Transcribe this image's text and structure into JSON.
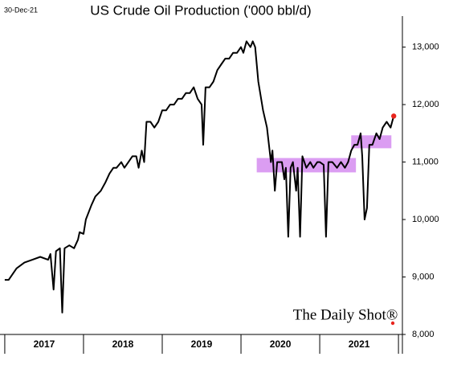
{
  "chart_data": {
    "type": "line",
    "title": "US Crude Oil Production ('000 bbl/d)",
    "date_label": "30-Dec-21",
    "watermark": "The Daily Shot®",
    "categories": [
      "2017",
      "2018",
      "2019",
      "2020",
      "2021"
    ],
    "xticks": [
      2017,
      2018,
      2019,
      2020,
      2021,
      2022
    ],
    "xlim": [
      2016.97,
      2022.05
    ],
    "ylim": [
      8000,
      13400
    ],
    "yticks": [
      {
        "value": 8000,
        "label": "8,000"
      },
      {
        "value": 9000,
        "label": "9,000"
      },
      {
        "value": 10000,
        "label": "10,000"
      },
      {
        "value": 11000,
        "label": "11,000"
      },
      {
        "value": 12000,
        "label": "12,000"
      },
      {
        "value": 13000,
        "label": "13,000"
      }
    ],
    "highlight_color": "#d58cf0",
    "highlights": [
      {
        "x": [
          2020.2,
          2021.46
        ],
        "y": [
          10820,
          11070
        ]
      },
      {
        "x": [
          2021.4,
          2021.91
        ],
        "y": [
          11240,
          11465
        ]
      }
    ],
    "last_point_color": "#e8251e",
    "series": [
      {
        "color": "#000000",
        "x": [
          2017.0,
          2017.05,
          2017.1,
          2017.15,
          2017.25,
          2017.35,
          2017.45,
          2017.55,
          2017.58,
          2017.62,
          2017.65,
          2017.7,
          2017.73,
          2017.76,
          2017.82,
          2017.88,
          2017.93,
          2017.95,
          2018.0,
          2018.03,
          2018.1,
          2018.15,
          2018.22,
          2018.28,
          2018.33,
          2018.38,
          2018.42,
          2018.48,
          2018.52,
          2018.57,
          2018.62,
          2018.67,
          2018.7,
          2018.74,
          2018.77,
          2018.8,
          2018.85,
          2018.9,
          2018.95,
          2019.0,
          2019.05,
          2019.1,
          2019.15,
          2019.2,
          2019.25,
          2019.3,
          2019.35,
          2019.4,
          2019.45,
          2019.5,
          2019.52,
          2019.55,
          2019.6,
          2019.65,
          2019.7,
          2019.75,
          2019.8,
          2019.85,
          2019.9,
          2019.95,
          2020.0,
          2020.03,
          2020.07,
          2020.12,
          2020.15,
          2020.18,
          2020.22,
          2020.28,
          2020.33,
          2020.38,
          2020.4,
          2020.43,
          2020.46,
          2020.52,
          2020.55,
          2020.57,
          2020.6,
          2020.63,
          2020.66,
          2020.7,
          2020.72,
          2020.75,
          2020.78,
          2020.83,
          2020.88,
          2020.92,
          2020.97,
          2021.0,
          2021.05,
          2021.08,
          2021.11,
          2021.16,
          2021.22,
          2021.27,
          2021.32,
          2021.36,
          2021.4,
          2021.44,
          2021.48,
          2021.52,
          2021.54,
          2021.57,
          2021.6,
          2021.63,
          2021.67,
          2021.72,
          2021.76,
          2021.8,
          2021.85,
          2021.9,
          2021.94
        ],
        "values": [
          8950,
          8950,
          9050,
          9150,
          9250,
          9300,
          9350,
          9300,
          9400,
          8780,
          9450,
          9500,
          8380,
          9500,
          9550,
          9500,
          9650,
          9780,
          9750,
          10000,
          10250,
          10400,
          10500,
          10650,
          10800,
          10900,
          10900,
          11000,
          10900,
          11000,
          11100,
          11100,
          10900,
          11200,
          11000,
          11700,
          11700,
          11600,
          11700,
          11900,
          11900,
          12000,
          12000,
          12100,
          12100,
          12200,
          12200,
          12300,
          12100,
          12000,
          11300,
          12300,
          12300,
          12400,
          12600,
          12700,
          12800,
          12800,
          12900,
          12900,
          13000,
          12900,
          13100,
          13000,
          13100,
          13000,
          12400,
          11900,
          11600,
          11000,
          11200,
          10500,
          11000,
          11000,
          10700,
          10900,
          9700,
          10900,
          11000,
          10500,
          10900,
          9700,
          11100,
          10900,
          11000,
          10900,
          11000,
          11000,
          10950,
          9700,
          11000,
          11000,
          10900,
          11000,
          10900,
          11000,
          11200,
          11300,
          11300,
          11500,
          11100,
          10000,
          10200,
          11300,
          11300,
          11500,
          11400,
          11600,
          11700,
          11600,
          11800
        ]
      }
    ]
  }
}
